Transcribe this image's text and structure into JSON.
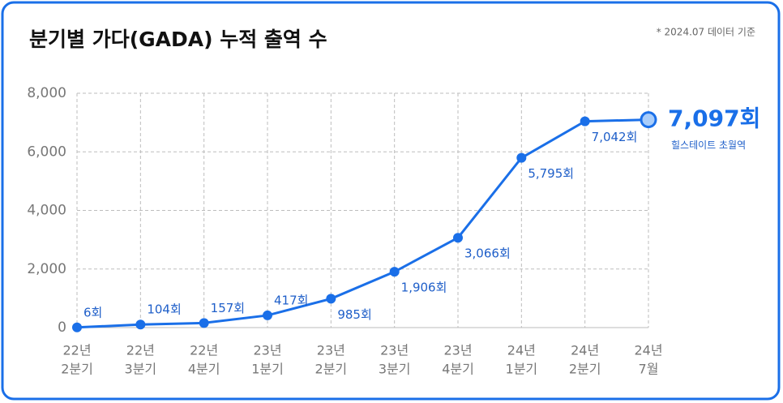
{
  "chart_data": {
    "type": "line",
    "title": "분기별 가다(GADA) 누적 출역 수",
    "note": "* 2024.07 데이터 기준",
    "categories": [
      [
        "22년",
        "2분기"
      ],
      [
        "22년",
        "3분기"
      ],
      [
        "22년",
        "4분기"
      ],
      [
        "23년",
        "1분기"
      ],
      [
        "23년",
        "2분기"
      ],
      [
        "23년",
        "3분기"
      ],
      [
        "23년",
        "4분기"
      ],
      [
        "24년",
        "1분기"
      ],
      [
        "24년",
        "2분기"
      ],
      [
        "24년",
        "7월"
      ]
    ],
    "values": [
      6,
      104,
      157,
      417,
      985,
      1906,
      3066,
      5795,
      7042,
      7097
    ],
    "value_labels": [
      "6회",
      "104회",
      "157회",
      "417회",
      "985회",
      "1,906회",
      "3,066회",
      "5,795회",
      "7,042회",
      "7,097회"
    ],
    "annotation": "힐스테이트 초월역",
    "color": "#1a6fe8",
    "ylim": [
      0,
      8000
    ],
    "yticks": [
      0,
      {
        "value": 2000,
        "label": "2,000"
      },
      {
        "value": 4000,
        "label": "4,000"
      },
      {
        "value": 6000,
        "label": "6,000"
      },
      {
        "value": 8000,
        "label": "8,000"
      }
    ],
    "grid": true
  }
}
